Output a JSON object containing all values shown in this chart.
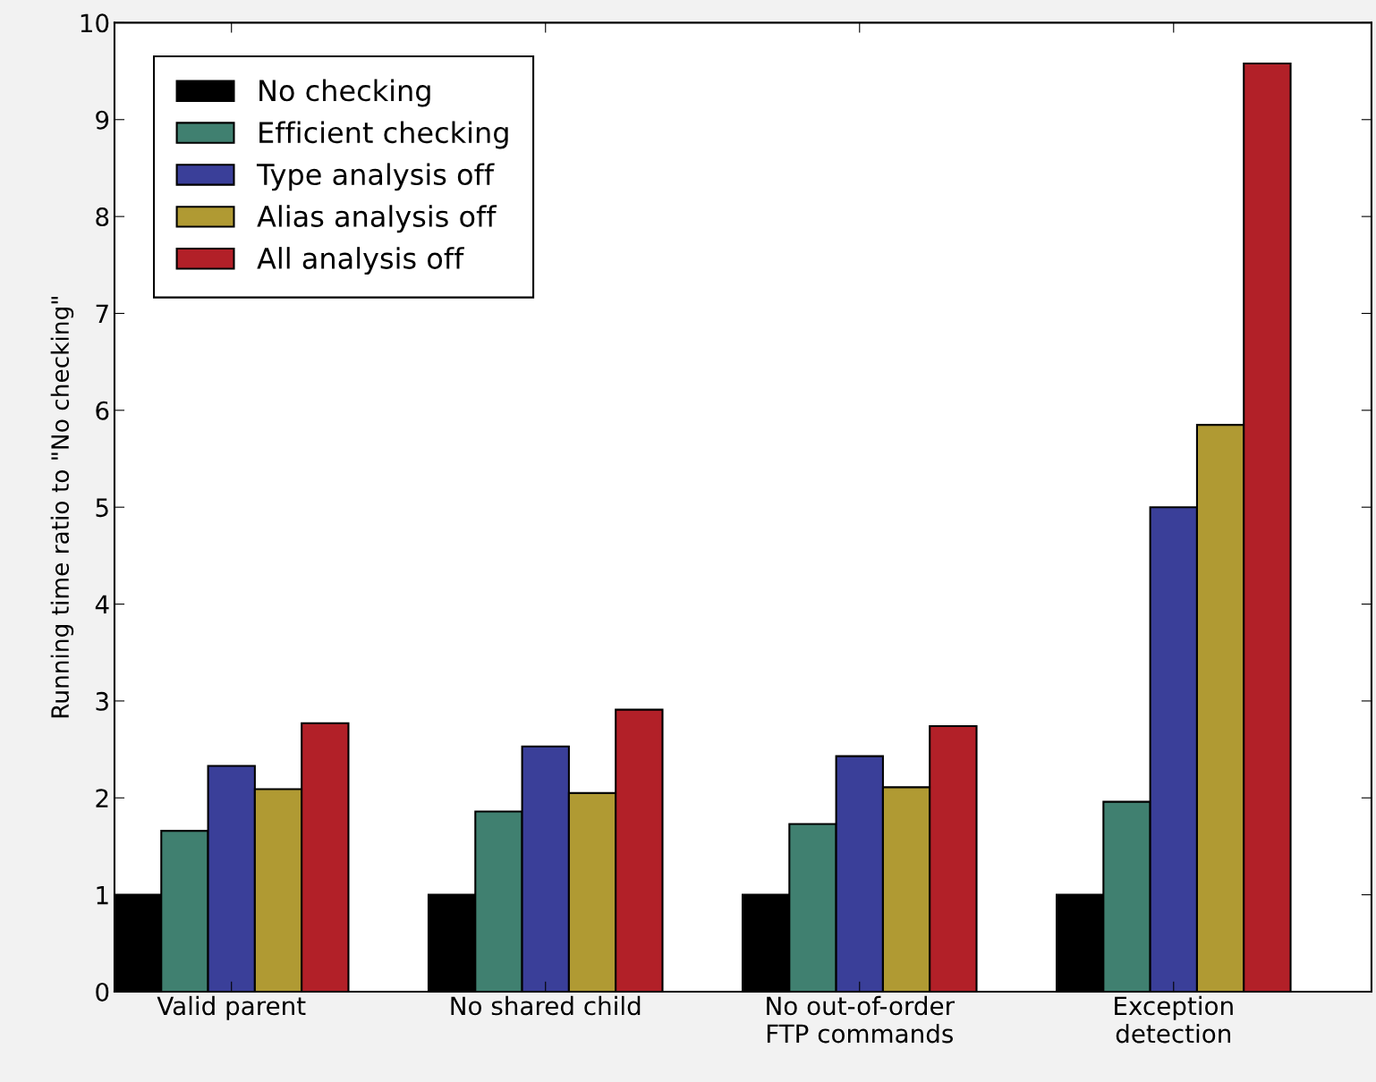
{
  "chart_data": {
    "type": "bar",
    "ylabel": "Running time ratio to \"No checking\"",
    "categories": [
      "Valid parent",
      "No shared child",
      "No out-of-order\nFTP commands",
      "Exception\ndetection"
    ],
    "series": [
      {
        "name": "No checking",
        "color": "#000000",
        "values": [
          1.0,
          1.0,
          1.0,
          1.0
        ]
      },
      {
        "name": "Efficient checking",
        "color": "#408070",
        "values": [
          1.66,
          1.86,
          1.73,
          1.96
        ]
      },
      {
        "name": "Type analysis off",
        "color": "#3a3f99",
        "values": [
          2.33,
          2.53,
          2.43,
          5.0
        ]
      },
      {
        "name": "Alias analysis off",
        "color": "#b09a33",
        "values": [
          2.09,
          2.05,
          2.11,
          5.85
        ]
      },
      {
        "name": "All analysis off",
        "color": "#b22028",
        "values": [
          2.77,
          2.91,
          2.74,
          9.58
        ]
      }
    ],
    "ylim": [
      0,
      10
    ],
    "yticks": [
      0,
      1,
      2,
      3,
      4,
      5,
      6,
      7,
      8,
      9,
      10
    ],
    "grid": false,
    "legend": "top left"
  }
}
